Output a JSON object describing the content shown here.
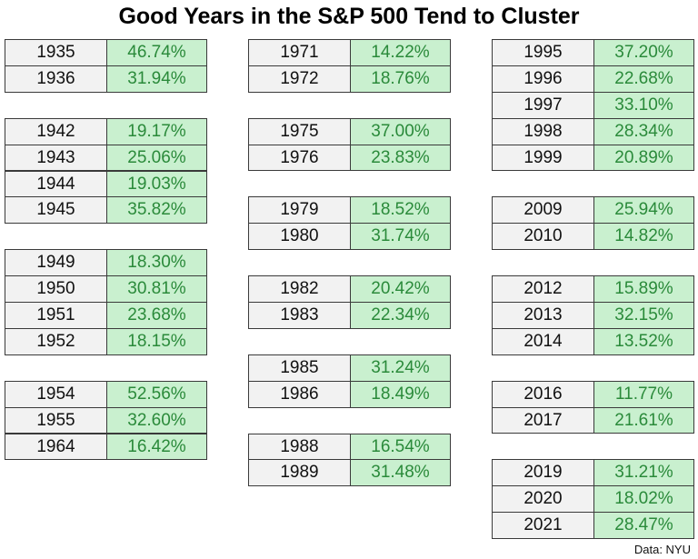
{
  "title": "Good Years in the S&P 500 Tend to Cluster",
  "columns": [
    {
      "groups": [
        {
          "rows": [
            [
              "1935",
              "46.74%"
            ],
            [
              "1936",
              "31.94%"
            ]
          ]
        },
        {
          "rows": [
            [
              "1942",
              "19.17%"
            ],
            [
              "1943",
              "25.06%"
            ],
            [
              "1944",
              "19.03%"
            ],
            [
              "1945",
              "35.82%"
            ]
          ]
        },
        {
          "rows": [
            [
              "1949",
              "18.30%"
            ],
            [
              "1950",
              "30.81%"
            ],
            [
              "1951",
              "23.68%"
            ],
            [
              "1952",
              "18.15%"
            ]
          ]
        },
        {
          "rows": [
            [
              "1954",
              "52.56%"
            ],
            [
              "1955",
              "32.60%"
            ],
            [
              "1964",
              "16.42%"
            ]
          ]
        }
      ]
    },
    {
      "groups": [
        {
          "rows": [
            [
              "1971",
              "14.22%"
            ],
            [
              "1972",
              "18.76%"
            ]
          ]
        },
        {
          "rows": [
            [
              "1975",
              "37.00%"
            ],
            [
              "1976",
              "23.83%"
            ]
          ]
        },
        {
          "rows": [
            [
              "1979",
              "18.52%"
            ],
            [
              "1980",
              "31.74%"
            ]
          ]
        },
        {
          "rows": [
            [
              "1982",
              "20.42%"
            ],
            [
              "1983",
              "22.34%"
            ]
          ]
        },
        {
          "rows": [
            [
              "1985",
              "31.24%"
            ],
            [
              "1986",
              "18.49%"
            ]
          ]
        },
        {
          "rows": [
            [
              "1988",
              "16.54%"
            ],
            [
              "1989",
              "31.48%"
            ]
          ]
        }
      ]
    },
    {
      "groups": [
        {
          "rows": [
            [
              "1995",
              "37.20%"
            ],
            [
              "1996",
              "22.68%"
            ],
            [
              "1997",
              "33.10%"
            ],
            [
              "1998",
              "28.34%"
            ],
            [
              "1999",
              "20.89%"
            ]
          ]
        },
        {
          "rows": [
            [
              "2009",
              "25.94%"
            ],
            [
              "2010",
              "14.82%"
            ]
          ]
        },
        {
          "rows": [
            [
              "2012",
              "15.89%"
            ],
            [
              "2013",
              "32.15%"
            ],
            [
              "2014",
              "13.52%"
            ]
          ]
        },
        {
          "rows": [
            [
              "2016",
              "11.77%"
            ],
            [
              "2017",
              "21.61%"
            ]
          ]
        },
        {
          "rows": [
            [
              "2019",
              "31.21%"
            ],
            [
              "2020",
              "18.02%"
            ],
            [
              "2021",
              "28.47%"
            ]
          ]
        }
      ]
    }
  ],
  "source": "Data: NYU"
}
